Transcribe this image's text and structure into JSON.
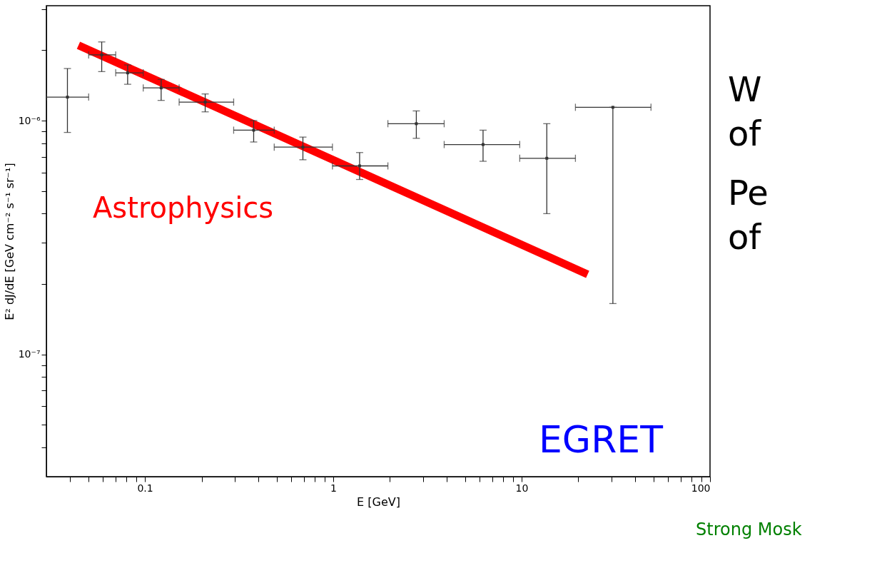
{
  "chart_data": {
    "type": "scatter",
    "xlabel": "E [GeV]",
    "ylabel": "E² dJ/dE [GeV cm⁻² s⁻¹ sr⁻¹]",
    "log": "xy",
    "grid": false,
    "xlim": [
      0.03,
      100
    ],
    "ylim": [
      3e-08,
      3.1e-06
    ],
    "xticks": [
      {
        "value": 0.04,
        "label": null
      },
      {
        "value": 0.05,
        "label": null
      },
      {
        "value": 0.06,
        "label": null
      },
      {
        "value": 0.07,
        "label": null
      },
      {
        "value": 0.08,
        "label": null
      },
      {
        "value": 0.09,
        "label": null
      },
      0.1,
      {
        "value": 0.2,
        "label": null
      },
      {
        "value": 0.3,
        "label": null
      },
      {
        "value": 0.4,
        "label": null
      },
      {
        "value": 0.5,
        "label": null
      },
      {
        "value": 0.6,
        "label": null
      },
      {
        "value": 0.7,
        "label": null
      },
      {
        "value": 0.8,
        "label": null
      },
      {
        "value": 0.9,
        "label": null
      },
      1,
      {
        "value": 2,
        "label": null
      },
      {
        "value": 3,
        "label": null
      },
      {
        "value": 4,
        "label": null
      },
      {
        "value": 5,
        "label": null
      },
      {
        "value": 6,
        "label": null
      },
      {
        "value": 7,
        "label": null
      },
      {
        "value": 8,
        "label": null
      },
      {
        "value": 9,
        "label": null
      },
      10,
      {
        "value": 20,
        "label": null
      },
      {
        "value": 30,
        "label": null
      },
      {
        "value": 40,
        "label": null
      },
      {
        "value": 50,
        "label": null
      },
      {
        "value": 60,
        "label": null
      },
      {
        "value": 70,
        "label": null
      },
      {
        "value": 80,
        "label": null
      },
      {
        "value": 90,
        "label": null
      },
      100
    ],
    "yticks": [
      {
        "value": 4e-08,
        "label": null
      },
      {
        "value": 5e-08,
        "label": null
      },
      {
        "value": 6e-08,
        "label": null
      },
      {
        "value": 7e-08,
        "label": null
      },
      {
        "value": 8e-08,
        "label": null
      },
      {
        "value": 9e-08,
        "label": null
      },
      {
        "value": 1e-07,
        "label": "10⁻⁷"
      },
      {
        "value": 2e-07,
        "label": null
      },
      {
        "value": 3e-07,
        "label": null
      },
      {
        "value": 4e-07,
        "label": null
      },
      {
        "value": 5e-07,
        "label": null
      },
      {
        "value": 6e-07,
        "label": null
      },
      {
        "value": 7e-07,
        "label": null
      },
      {
        "value": 8e-07,
        "label": null
      },
      {
        "value": 9e-07,
        "label": null
      },
      {
        "value": 1e-06,
        "label": "10⁻⁶"
      },
      {
        "value": 2e-06,
        "label": null
      },
      {
        "value": 3e-06,
        "label": null
      }
    ],
    "series": [
      {
        "type": "scatter",
        "color": "#333333",
        "x": [
          0.0388,
          0.059,
          0.081,
          0.122,
          0.209,
          0.378,
          0.69,
          1.38,
          2.76,
          6.24,
          13.6,
          30.5
        ],
        "values": [
          1.26e-06,
          1.91e-06,
          1.6e-06,
          1.38e-06,
          1.2e-06,
          9.1e-07,
          7.7e-07,
          6.4e-07,
          9.7e-07,
          7.9e-07,
          6.9e-07,
          1.14e-06
        ],
        "errors": [
          [
            8.9e-07,
            1.67e-06
          ],
          [
            1.62e-06,
            2.17e-06
          ],
          [
            1.43e-06,
            1.73e-06
          ],
          [
            1.22e-06,
            1.5e-06
          ],
          [
            1.09e-06,
            1.3e-06
          ],
          [
            8.1e-07,
            1e-06
          ],
          [
            6.8e-07,
            8.5e-07
          ],
          [
            5.6e-07,
            7.3e-07
          ],
          [
            8.4e-07,
            1.1e-06
          ],
          [
            6.7e-07,
            9.1e-07
          ],
          [
            4e-07,
            9.7e-07
          ],
          [
            1.65e-07,
            1.14e-06
          ]
        ],
        "xerrors": [
          [
            0.03,
            0.0503
          ],
          [
            0.0503,
            0.07
          ],
          [
            0.07,
            0.098
          ],
          [
            0.098,
            0.152
          ],
          [
            0.152,
            0.296
          ],
          [
            0.296,
            0.486
          ],
          [
            0.486,
            0.99
          ],
          [
            0.99,
            1.95
          ],
          [
            1.95,
            3.88
          ],
          [
            3.88,
            9.77
          ],
          [
            9.77,
            19.3
          ],
          [
            19.3,
            48.6
          ]
        ]
      },
      {
        "type": "line",
        "name": "Astrophysics",
        "color": "#ff0000",
        "x": [
          0.0444,
          22.4
        ],
        "values": [
          2.1e-06,
          2.2e-07
        ]
      }
    ],
    "annotations": [
      "EGRET",
      "W",
      "of",
      "Pe",
      "of",
      "Strong Mosk"
    ]
  }
}
